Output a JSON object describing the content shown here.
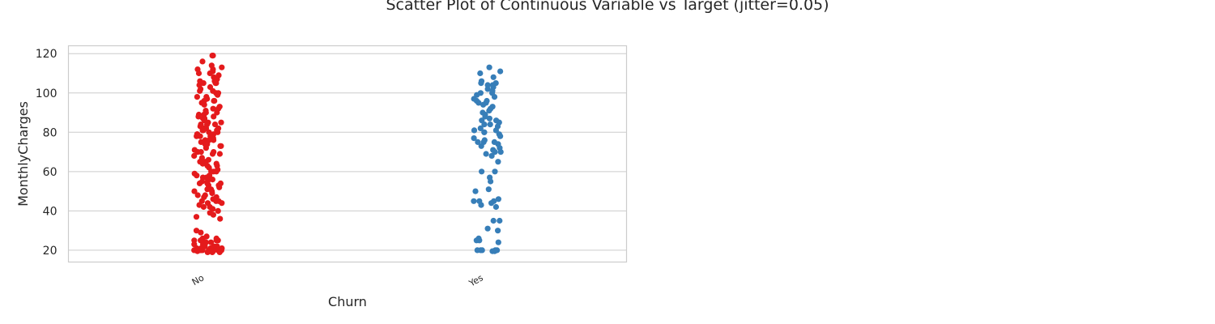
{
  "chart_data": {
    "type": "scatter",
    "title": "Scatter Plot of Continuous Variable vs Target (jitter=0.05)",
    "xlabel": "Churn",
    "ylabel": "MonthlyCharges",
    "categories": [
      "No",
      "Yes"
    ],
    "ylim": [
      14,
      124
    ],
    "yticks": [
      20,
      40,
      60,
      80,
      100,
      120
    ],
    "grid": "horizontal",
    "jitter": 0.05,
    "series": [
      {
        "category": "No",
        "color": "#e41a1c",
        "values": [
          119,
          116,
          114,
          113,
          112,
          111,
          110,
          109,
          108,
          107,
          106,
          105,
          105,
          104,
          103,
          102,
          101,
          100,
          100,
          99,
          98,
          97,
          96,
          96,
          95,
          94,
          93,
          92,
          91,
          90,
          90,
          89,
          88,
          87,
          86,
          85,
          85,
          84,
          84,
          83,
          82,
          82,
          81,
          81,
          80,
          80,
          79,
          79,
          78,
          78,
          77,
          76,
          76,
          75,
          75,
          74,
          74,
          73,
          72,
          71,
          70,
          70,
          69,
          68,
          67,
          66,
          65,
          65,
          64,
          63,
          62,
          61,
          60,
          60,
          59,
          58,
          57,
          56,
          56,
          55,
          55,
          54,
          54,
          53,
          52,
          51,
          50,
          50,
          49,
          48,
          47,
          46,
          45,
          45,
          44,
          44,
          43,
          42,
          41,
          40,
          39,
          38,
          37,
          36,
          30,
          29,
          27,
          26,
          26,
          25,
          25,
          25,
          24,
          24,
          23,
          23,
          22,
          22,
          21,
          21,
          21,
          20,
          20,
          20,
          20,
          20,
          20,
          19.5,
          19.5,
          19,
          19,
          19,
          119,
          112,
          110,
          106,
          101,
          98,
          95,
          92,
          89,
          87,
          84,
          81,
          79,
          76,
          73,
          70,
          66,
          63,
          60,
          57,
          54,
          51,
          48,
          45,
          42,
          25,
          24,
          22,
          21,
          20,
          20,
          19.5,
          105,
          96,
          88,
          82,
          78,
          74,
          69,
          64,
          58,
          53,
          47,
          20,
          20,
          21
        ]
      },
      {
        "category": "Yes",
        "color": "#377eb8",
        "values": [
          113,
          111,
          110,
          108,
          106,
          105,
          105,
          104,
          103,
          102,
          101,
          100,
          100,
          99,
          98,
          97,
          96,
          96,
          95,
          94,
          93,
          92,
          91,
          90,
          89,
          88,
          87,
          86,
          85,
          85,
          84,
          84,
          83,
          82,
          81,
          80,
          80,
          79,
          78,
          77,
          76,
          75,
          75,
          74,
          73,
          72,
          71,
          70,
          70,
          69,
          68,
          65,
          60,
          60,
          57,
          55,
          51,
          50,
          46,
          45,
          45,
          44,
          43,
          42,
          35,
          35,
          31,
          30,
          26,
          25,
          25,
          24,
          20,
          20,
          20,
          20,
          19.5,
          19.5,
          104,
          95,
          86,
          81,
          75,
          45,
          20
        ]
      }
    ]
  }
}
